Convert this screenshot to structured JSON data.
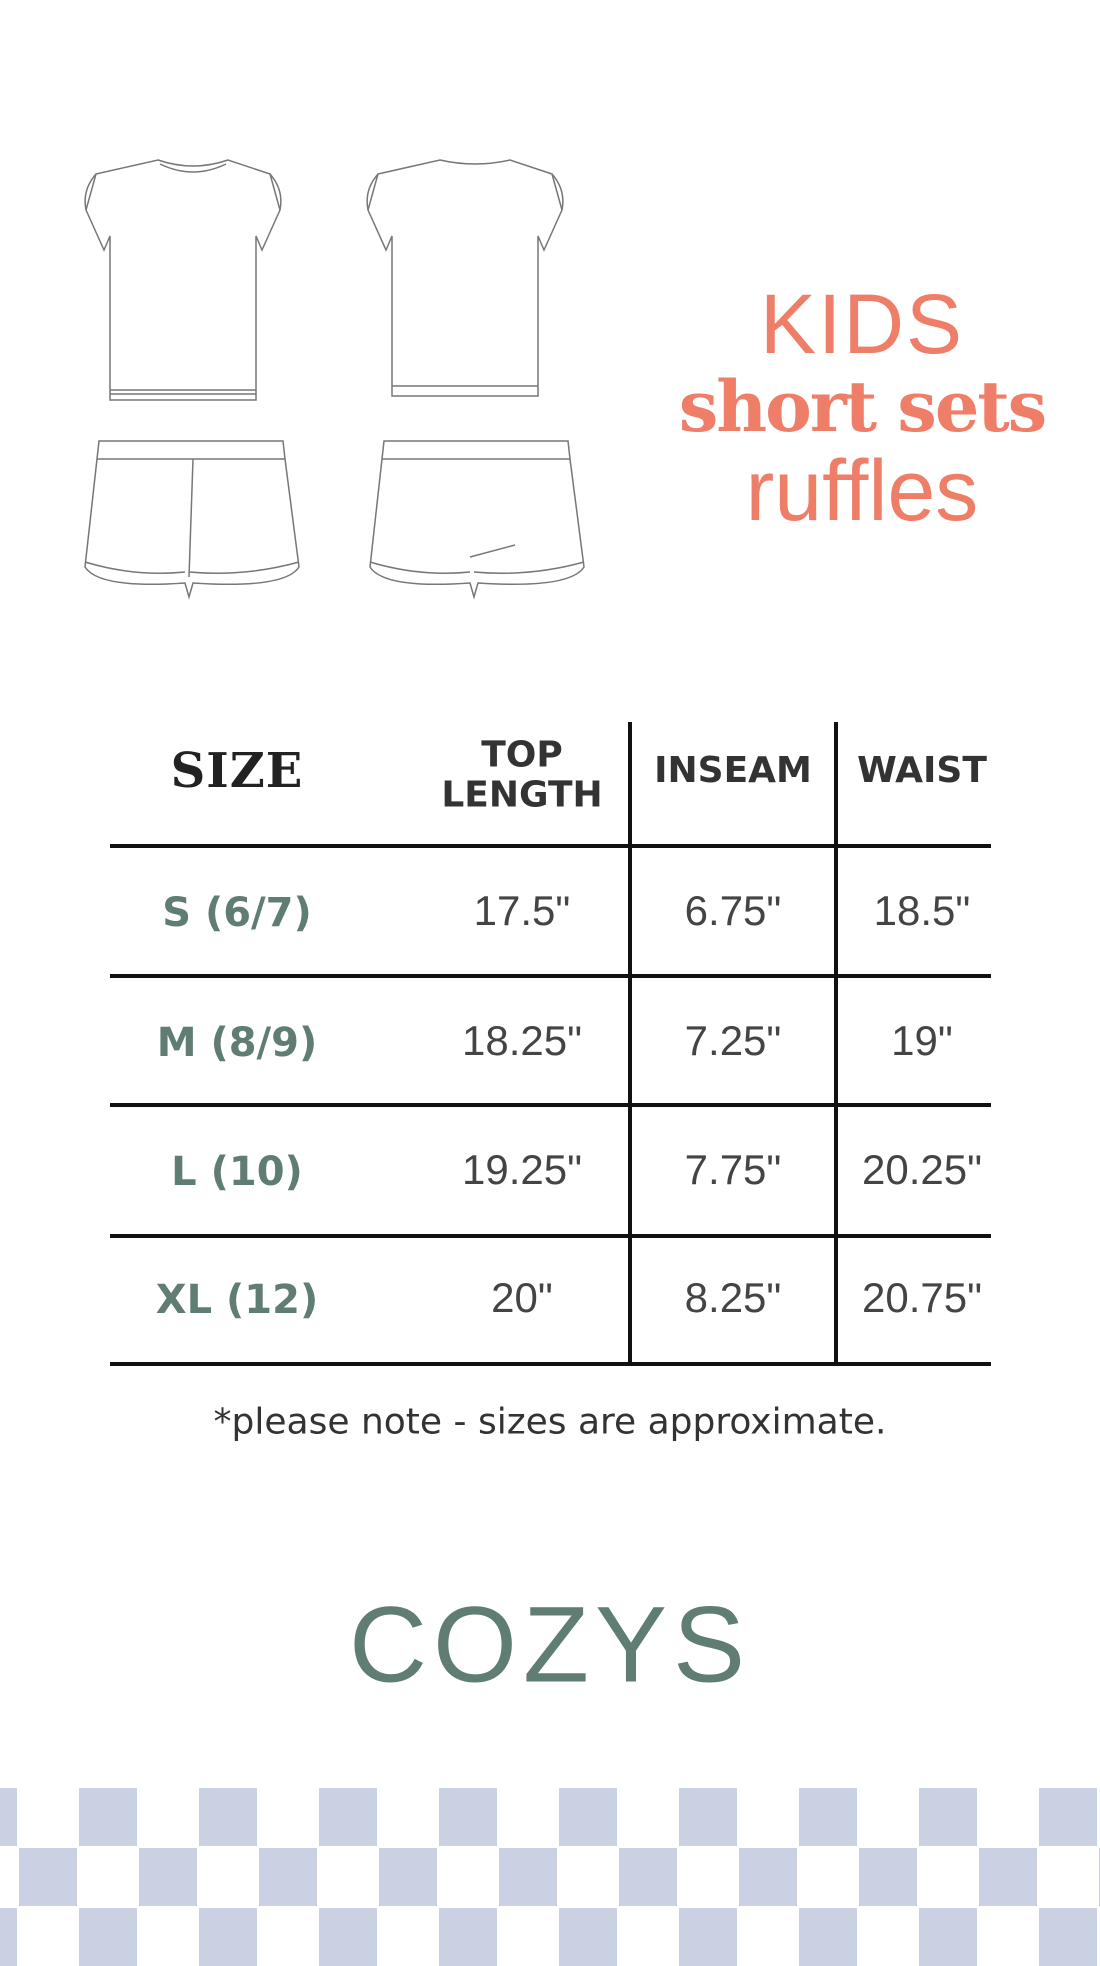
{
  "header": {
    "line1": "KIDS",
    "line2": "short sets",
    "line3": "ruffles"
  },
  "table": {
    "headers": [
      "SIZE",
      "TOP\nLENGTH",
      "INSEAM",
      "WAIST"
    ],
    "header_top_length_line1": "TOP",
    "header_top_length_line2": "LENGTH",
    "rows": [
      {
        "size": "S (6/7)",
        "top_length": "17.5\"",
        "inseam": "6.75\"",
        "waist": "18.5\""
      },
      {
        "size": "M (8/9)",
        "top_length": "18.25\"",
        "inseam": "7.25\"",
        "waist": "19\""
      },
      {
        "size": "L (10)",
        "top_length": "19.25\"",
        "inseam": "7.75\"",
        "waist": "20.25\""
      },
      {
        "size": "XL (12)",
        "top_length": "20\"",
        "inseam": "8.25\"",
        "waist": "20.75\""
      }
    ]
  },
  "note": "*please note - sizes are approximate.",
  "brand": "COZYS",
  "colors": {
    "accent": "#ee7e68",
    "brand": "#5f7d72",
    "checker": "#cad1e3"
  },
  "illustrations": [
    "ruffle-top-front",
    "ruffle-top-back",
    "ruffle-shorts-front",
    "ruffle-shorts-back"
  ]
}
